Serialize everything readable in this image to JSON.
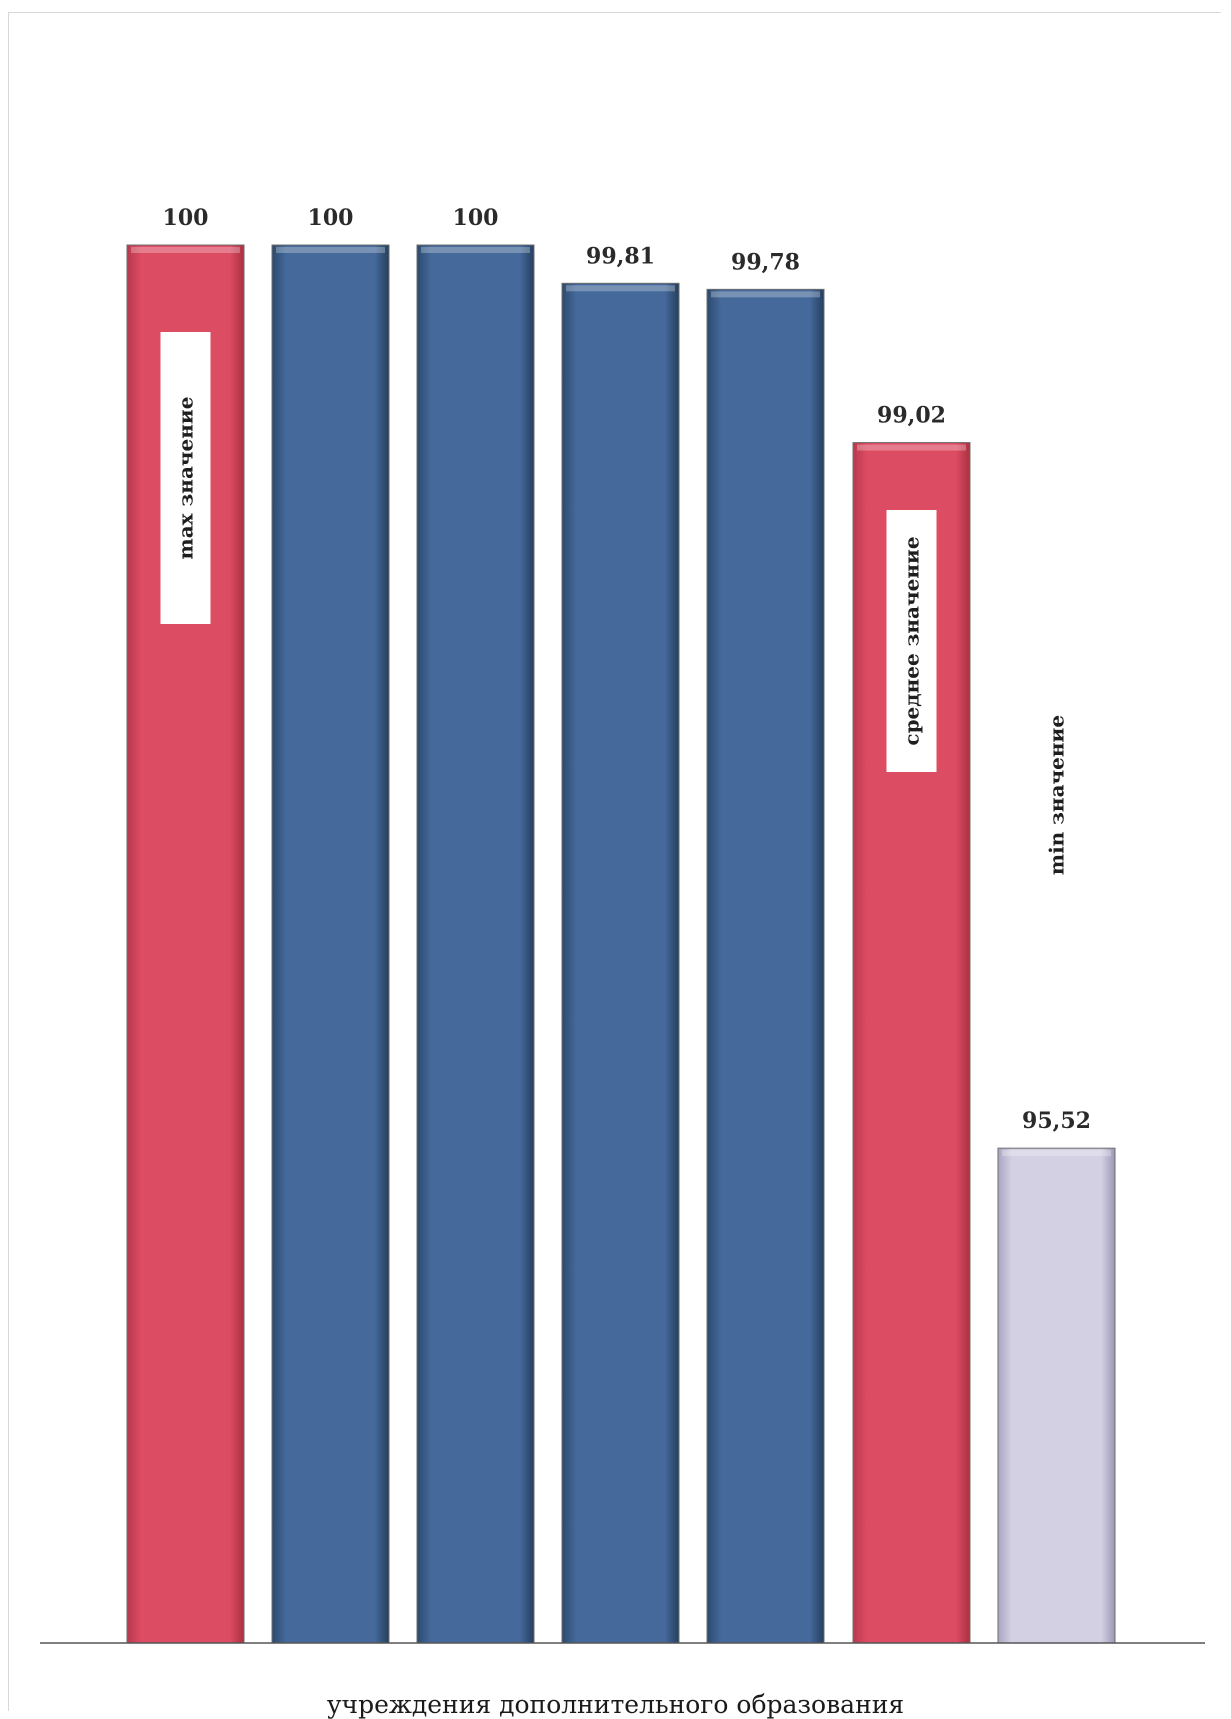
{
  "chart_data": {
    "type": "bar",
    "categories": [
      "",
      "",
      "",
      "",
      "",
      "",
      ""
    ],
    "values": [
      100,
      100,
      100,
      99.81,
      99.78,
      99.02,
      95.52
    ],
    "value_labels": [
      "100",
      "100",
      "100",
      "99,81",
      "99,78",
      "99,02",
      "95,52"
    ],
    "bar_roles": [
      "max",
      "regular",
      "regular",
      "regular",
      "regular",
      "mean",
      "min"
    ],
    "bar_tags": [
      "max значение",
      "",
      "",
      "",
      "",
      "среднее значение",
      "min значение"
    ],
    "xlabel": "учреждения дополнительного образования",
    "ylabel": "",
    "title": "",
    "legend": "none",
    "grid": false,
    "colors": {
      "max": "#d9485f",
      "mean": "#d9485f",
      "regular": "#3f6590",
      "min": "#cdc9de"
    }
  }
}
